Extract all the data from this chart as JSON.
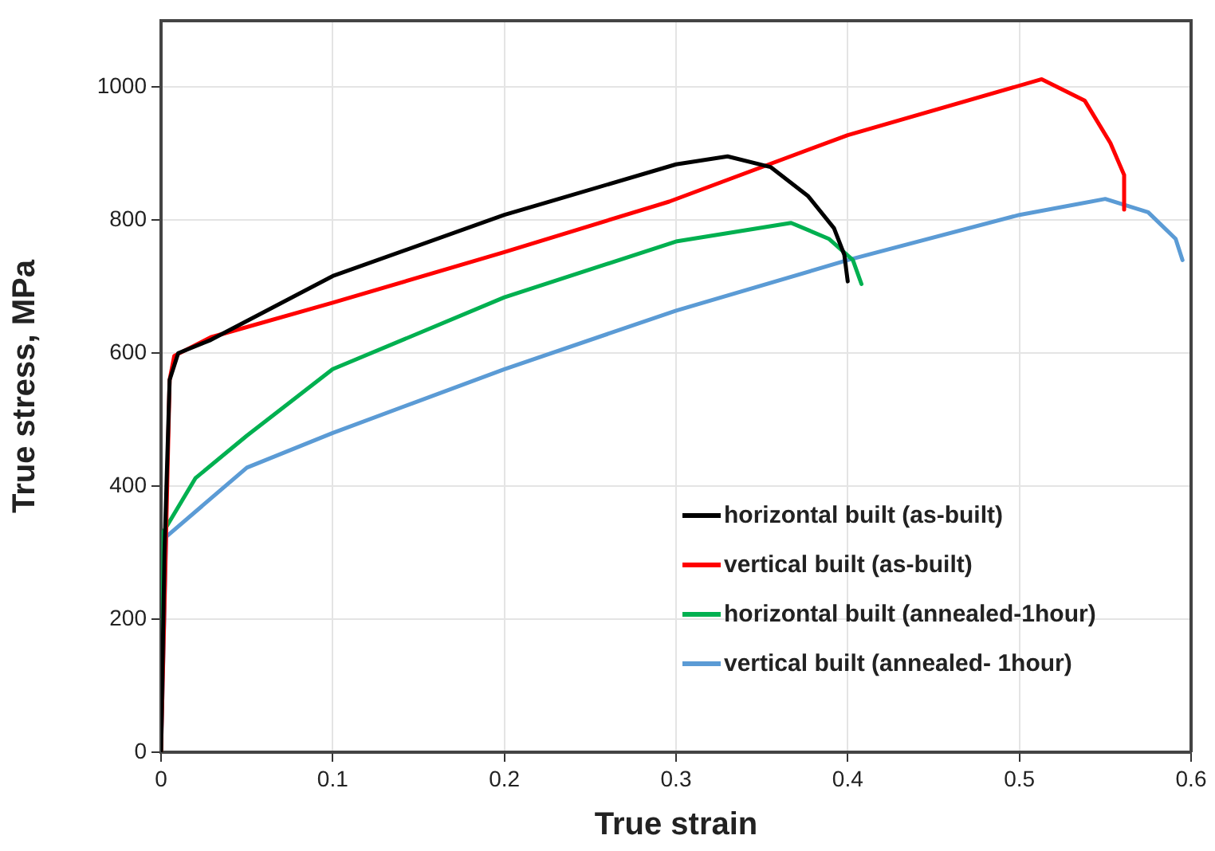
{
  "chart_data": {
    "type": "line",
    "xlabel": "True strain",
    "ylabel": "True stress, MPa",
    "xlim": [
      0,
      0.6
    ],
    "xticks": [
      0,
      0.1,
      0.2,
      0.3,
      0.4,
      0.5,
      0.6
    ],
    "ylim": [
      0,
      1100
    ],
    "yticks": [
      0,
      200,
      400,
      600,
      800,
      1000
    ],
    "grid": true,
    "legend": "bottom right",
    "marker": "none",
    "line_style": "solid",
    "series": [
      {
        "name": "horizontal built (as-built)",
        "color": "#000000",
        "x": [
          0,
          0.002,
          0.005,
          0.01,
          0.029,
          0.1,
          0.2,
          0.3,
          0.33,
          0.355,
          0.377,
          0.392,
          0.398,
          0.4
        ],
        "values": [
          0,
          300,
          560,
          600,
          620,
          716,
          808,
          884,
          896,
          880,
          836,
          788,
          748,
          708
        ]
      },
      {
        "name": "vertical built (as-built)",
        "color": "#ff0000",
        "x": [
          0,
          0.005,
          0.0077,
          0.029,
          0.1,
          0.2,
          0.296,
          0.4,
          0.513,
          0.538,
          0.553,
          0.561,
          0.561
        ],
        "values": [
          0,
          560,
          596,
          624,
          676,
          752,
          828,
          928,
          1012,
          980,
          916,
          868,
          816
        ]
      },
      {
        "name": "horizontal built (annealed-1hour)",
        "color": "#00b050",
        "x": [
          0,
          0.0015,
          0.02,
          0.05,
          0.1,
          0.2,
          0.3,
          0.367,
          0.389,
          0.403,
          0.408
        ],
        "values": [
          0,
          332,
          412,
          476,
          576,
          684,
          768,
          796,
          772,
          740,
          704
        ]
      },
      {
        "name": "vertical built (annealed- 1hour)",
        "color": "#5b9bd5",
        "x": [
          0,
          0.003,
          0.05,
          0.1,
          0.2,
          0.3,
          0.4,
          0.5,
          0.55,
          0.575,
          0.591,
          0.595
        ],
        "values": [
          0,
          324,
          428,
          480,
          576,
          664,
          740,
          808,
          832,
          812,
          772,
          740
        ]
      }
    ]
  }
}
